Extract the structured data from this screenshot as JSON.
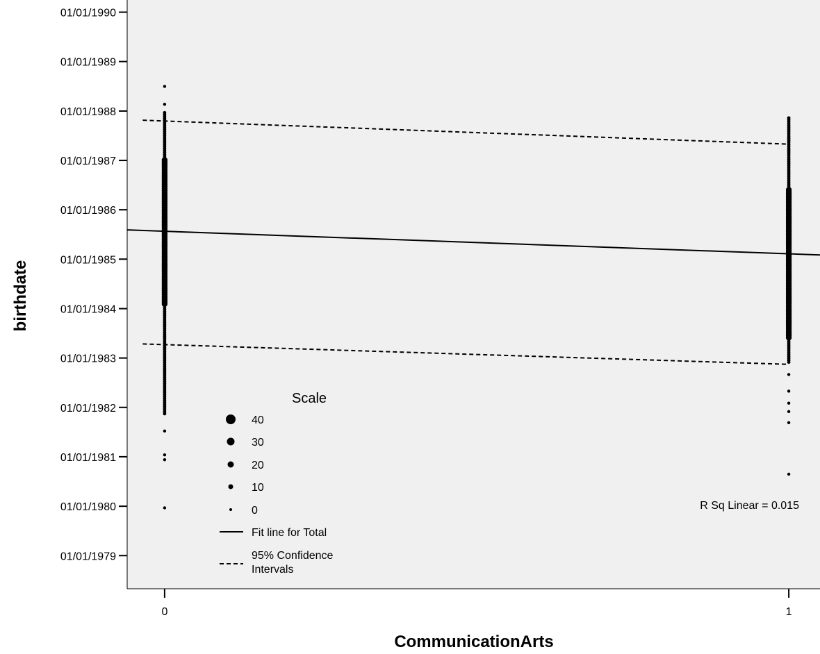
{
  "chart_data": {
    "type": "scatter",
    "xlabel": "CommunicationArts",
    "ylabel": "birthdate",
    "x_ticks": [
      "0",
      "1"
    ],
    "xlim": [
      -0.06,
      1.05
    ],
    "ylim": [
      "1978-05-01",
      "1990-04-01"
    ],
    "y_ticks": [
      "01/01/1979",
      "01/01/1980",
      "01/01/1981",
      "01/01/1982",
      "01/01/1983",
      "01/01/1984",
      "01/01/1985",
      "01/01/1986",
      "01/01/1987",
      "01/01/1988",
      "01/01/1989",
      "01/01/1990"
    ],
    "groups": [
      {
        "x": 0,
        "y_range": [
          "1981-11-15",
          "1988-01-01"
        ],
        "dense_range": [
          "1984-02-01",
          "1987-01-15"
        ],
        "outliers": [
          "1988-07-01",
          "1988-02-20",
          "1981-07-10",
          "1981-01-15",
          "1980-12-10",
          "1979-12-20"
        ]
      },
      {
        "x": 1,
        "y_range": [
          "1982-12-01",
          "1987-11-15"
        ],
        "dense_range": [
          "1983-06-01",
          "1986-06-01"
        ],
        "outliers": [
          "1982-09-01",
          "1982-05-01",
          "1982-02-01",
          "1981-12-01",
          "1981-09-10",
          "1980-08-25"
        ]
      }
    ],
    "fit_line": {
      "name": "Fit line for Total",
      "x": [
        -0.06,
        1.05
      ],
      "y": [
        "1985-08-05",
        "1985-02-01"
      ]
    },
    "ci_lower": {
      "x": [
        -0.035,
        1.0
      ],
      "y": [
        "1983-04-15",
        "1982-11-15"
      ]
    },
    "ci_upper": {
      "x": [
        -0.035,
        1.0
      ],
      "y": [
        "1987-10-25",
        "1987-05-01"
      ]
    },
    "annotation": "R Sq Linear = 0.015",
    "legend": {
      "title": "Scale",
      "placement": "bottom-left",
      "size_items": [
        "40",
        "30",
        "20",
        "10",
        "0"
      ],
      "line_items": [
        "Fit line for Total",
        "95% Confidence Intervals"
      ]
    },
    "colors": {
      "background": "#f0f0f0",
      "points": "#000000",
      "lines": "#000000"
    }
  }
}
